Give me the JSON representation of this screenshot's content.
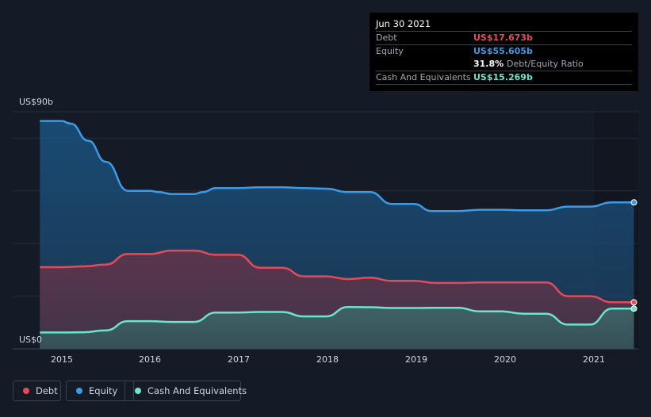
{
  "chart_data": {
    "type": "area",
    "y_max_label": "US$90b",
    "y_min_label": "US$0",
    "ylim": [
      0,
      90
    ],
    "xlim": [
      2014.75,
      2021.5
    ],
    "x_ticks": [
      "2015",
      "2016",
      "2017",
      "2018",
      "2019",
      "2020",
      "2021"
    ],
    "series": [
      {
        "name": "Equity",
        "color": "#3b9be8",
        "points": [
          [
            2014.75,
            86.5
          ],
          [
            2015.0,
            86.5
          ],
          [
            2015.1,
            85.5
          ],
          [
            2015.3,
            79
          ],
          [
            2015.5,
            71
          ],
          [
            2015.75,
            60
          ],
          [
            2016.0,
            60
          ],
          [
            2016.1,
            59.5
          ],
          [
            2016.25,
            58.8
          ],
          [
            2016.5,
            58.8
          ],
          [
            2016.6,
            59.5
          ],
          [
            2016.75,
            61
          ],
          [
            2017.0,
            61
          ],
          [
            2017.25,
            61.3
          ],
          [
            2017.5,
            61.3
          ],
          [
            2017.75,
            61
          ],
          [
            2018.0,
            60.8
          ],
          [
            2018.25,
            59.5
          ],
          [
            2018.5,
            59.5
          ],
          [
            2018.75,
            55
          ],
          [
            2019.0,
            55
          ],
          [
            2019.2,
            52.3
          ],
          [
            2019.5,
            52.3
          ],
          [
            2019.75,
            52.8
          ],
          [
            2020.0,
            52.8
          ],
          [
            2020.25,
            52.6
          ],
          [
            2020.5,
            52.6
          ],
          [
            2020.75,
            54
          ],
          [
            2021.0,
            54
          ],
          [
            2021.25,
            55.605
          ],
          [
            2021.5,
            55.605
          ]
        ]
      },
      {
        "name": "Debt",
        "color": "#e64a58",
        "points": [
          [
            2014.75,
            31
          ],
          [
            2015.0,
            31
          ],
          [
            2015.25,
            31.3
          ],
          [
            2015.5,
            32
          ],
          [
            2015.75,
            36
          ],
          [
            2016.0,
            36
          ],
          [
            2016.25,
            37.3
          ],
          [
            2016.5,
            37.3
          ],
          [
            2016.75,
            35.7
          ],
          [
            2017.0,
            35.7
          ],
          [
            2017.25,
            30.8
          ],
          [
            2017.5,
            30.8
          ],
          [
            2017.75,
            27.5
          ],
          [
            2018.0,
            27.5
          ],
          [
            2018.25,
            26.5
          ],
          [
            2018.5,
            27
          ],
          [
            2018.75,
            25.8
          ],
          [
            2019.0,
            25.8
          ],
          [
            2019.25,
            25
          ],
          [
            2019.5,
            25
          ],
          [
            2019.75,
            25.2
          ],
          [
            2020.0,
            25.2
          ],
          [
            2020.25,
            25.2
          ],
          [
            2020.5,
            25.2
          ],
          [
            2020.75,
            20
          ],
          [
            2021.0,
            20
          ],
          [
            2021.25,
            17.673
          ],
          [
            2021.5,
            17.673
          ]
        ]
      },
      {
        "name": "Cash And Equivalents",
        "color": "#6de4cf",
        "points": [
          [
            2014.75,
            6.2
          ],
          [
            2015.0,
            6.2
          ],
          [
            2015.25,
            6.3
          ],
          [
            2015.5,
            7
          ],
          [
            2015.75,
            10.5
          ],
          [
            2016.0,
            10.5
          ],
          [
            2016.25,
            10.2
          ],
          [
            2016.5,
            10.2
          ],
          [
            2016.75,
            13.8
          ],
          [
            2017.0,
            13.8
          ],
          [
            2017.25,
            14
          ],
          [
            2017.5,
            14
          ],
          [
            2017.75,
            12.3
          ],
          [
            2018.0,
            12.3
          ],
          [
            2018.25,
            15.9
          ],
          [
            2018.5,
            15.8
          ],
          [
            2018.75,
            15.5
          ],
          [
            2019.0,
            15.5
          ],
          [
            2019.25,
            15.6
          ],
          [
            2019.5,
            15.6
          ],
          [
            2019.75,
            14.2
          ],
          [
            2020.0,
            14.2
          ],
          [
            2020.25,
            13.3
          ],
          [
            2020.5,
            13.3
          ],
          [
            2020.75,
            9.2
          ],
          [
            2021.0,
            9.2
          ],
          [
            2021.25,
            15.269
          ],
          [
            2021.5,
            15.269
          ]
        ]
      }
    ],
    "tooltip": {
      "date": "Jun 30 2021",
      "debt_label": "Debt",
      "debt_value": "US$17.673b",
      "equity_label": "Equity",
      "equity_value": "US$55.605b",
      "ratio_value": "31.8%",
      "ratio_label": "Debt/Equity Ratio",
      "cash_label": "Cash And Equivalents",
      "cash_value": "US$15.269b"
    }
  },
  "legend": [
    {
      "label": "Debt",
      "color": "#e64a58"
    },
    {
      "label": "Equity",
      "color": "#3b9be8"
    },
    {
      "label": "Cash And Equivalents",
      "color": "#6de4cf"
    }
  ]
}
